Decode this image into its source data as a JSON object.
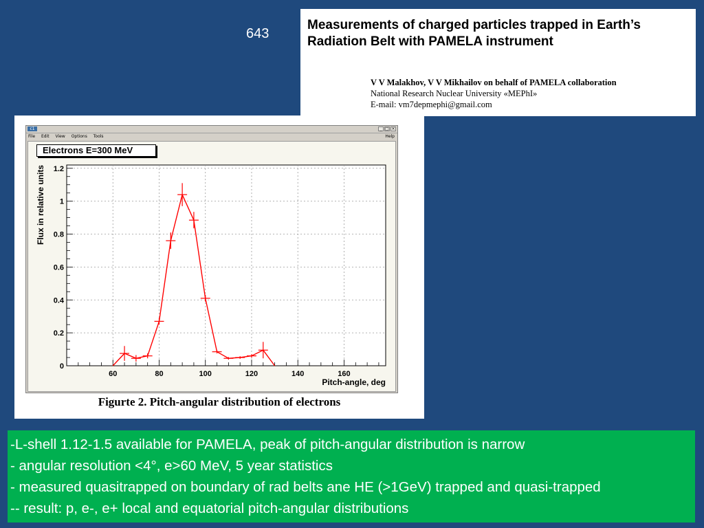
{
  "slide_number": "643",
  "paper": {
    "title_line1": "Measurements of charged particles trapped in Earth’s",
    "title_line2": "Radiation Belt with PAMELA instrument",
    "authors": "V V Malakhov, V V Mikhailov on behalf of PAMELA collaboration",
    "affiliation": "National Research Nuclear University «MEPhI»",
    "email": "E-mail: vm7depmephi@gmail.com"
  },
  "window": {
    "menu": [
      "File",
      "Edit",
      "View",
      "Options",
      "Tools"
    ],
    "help": "Help"
  },
  "figure_caption": "Figurte 2. Pitch-angular distribution of electrons",
  "chart_data": {
    "type": "line",
    "title": "Electrons E=300 MeV",
    "xlabel": "Pitch-angle, deg",
    "ylabel": "Flux in relative units",
    "xlim": [
      40,
      178
    ],
    "ylim": [
      0,
      1.22
    ],
    "xticks": [
      60,
      80,
      100,
      120,
      140,
      160
    ],
    "yticks": [
      0,
      0.2,
      0.4,
      0.6,
      0.8,
      1,
      1.2
    ],
    "grid": true,
    "color": "#ff0000",
    "series": [
      {
        "points": [
          {
            "x": 60,
            "y": 0.0,
            "err": 0
          },
          {
            "x": 65,
            "y": 0.075,
            "err": 0.045
          },
          {
            "x": 70,
            "y": 0.045,
            "err": 0.02
          },
          {
            "x": 75,
            "y": 0.06,
            "err": 0.015
          },
          {
            "x": 80,
            "y": 0.27,
            "err": 0.02
          },
          {
            "x": 85,
            "y": 0.76,
            "err": 0.05
          },
          {
            "x": 90,
            "y": 1.04,
            "err": 0.07
          },
          {
            "x": 95,
            "y": 0.885,
            "err": 0.05
          },
          {
            "x": 100,
            "y": 0.41,
            "err": 0.02
          },
          {
            "x": 105,
            "y": 0.085,
            "err": 0.01
          },
          {
            "x": 110,
            "y": 0.045,
            "err": 0.008
          },
          {
            "x": 115,
            "y": 0.05,
            "err": 0.008
          },
          {
            "x": 120,
            "y": 0.06,
            "err": 0.01
          },
          {
            "x": 125,
            "y": 0.095,
            "err": 0.05
          },
          {
            "x": 130,
            "y": 0.0,
            "err": 0
          }
        ]
      }
    ]
  },
  "summary_lines": [
    "-L-shell 1.12-1.5 available for PAMELA, peak of pitch-angular distribution is narrow",
    "- angular resolution <4°, e>60 MeV, 5 year statistics",
    "- measured quasitrapped on boundary of rad belts ane HE (>1GeV) trapped and quasi-trapped",
    "-- result: p, e-, e+ local and equatorial pitch-angular distributions"
  ]
}
